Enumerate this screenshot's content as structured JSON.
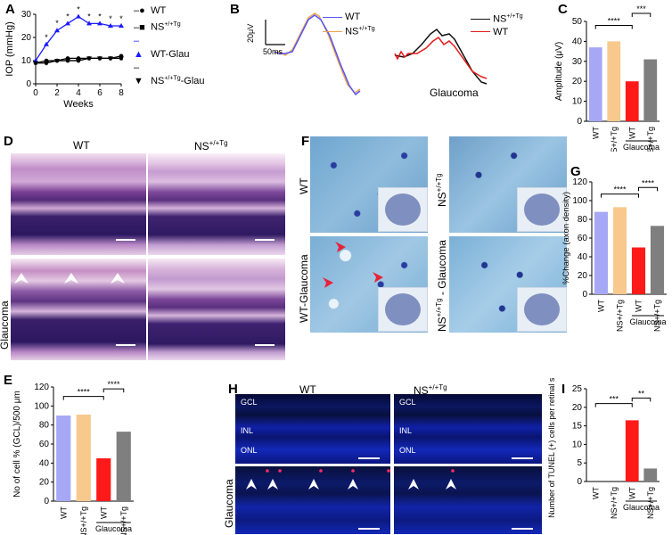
{
  "panels": {
    "A": "A",
    "B": "B",
    "C": "C",
    "D": "D",
    "E": "E",
    "F": "F",
    "G": "G",
    "H": "H",
    "I": "I"
  },
  "colors": {
    "blue": "#1a1aff",
    "orange": "#f0a04a",
    "red": "#ff1a1a",
    "gray": "#888888",
    "lavender": "#a6a8f5",
    "peach": "#f7c98d",
    "darkgray": "#7f7f7f"
  },
  "panelA": {
    "chart_data": {
      "type": "line",
      "xlabel": "Weeks",
      "ylabel": "IOP (mmHg)",
      "x": [
        0,
        1,
        2,
        3,
        4,
        5,
        6,
        7,
        8
      ],
      "xlim": [
        0,
        8
      ],
      "ylim": [
        0,
        30
      ],
      "xticks": [
        "0",
        "2",
        "4",
        "6",
        "8"
      ],
      "yticks": [
        "0",
        "10",
        "20",
        "30"
      ],
      "series": [
        {
          "name": "WT",
          "values": [
            9,
            10,
            10,
            11,
            11,
            11,
            11,
            11,
            12
          ]
        },
        {
          "name": "NS+/+Tg",
          "values": [
            9,
            9,
            10,
            10,
            10,
            11,
            11,
            11,
            11
          ]
        },
        {
          "name": "WT-Glau",
          "values": [
            10,
            17,
            23,
            26,
            29,
            26,
            26,
            25,
            25
          ]
        },
        {
          "name": "NS+/+Tg-Glau",
          "values": [
            9,
            9,
            10,
            10,
            10,
            11,
            11,
            11,
            11
          ]
        }
      ],
      "star": "*"
    },
    "legend": [
      "WT",
      "NS",
      "WT-Glau",
      "NS"
    ],
    "legend_sup": [
      "",
      "+/+Tg",
      "",
      "+/+Tg"
    ],
    "legend_suffix": [
      "",
      "",
      "",
      "-Glau"
    ]
  },
  "panelB": {
    "scale_v": "20μV",
    "scale_t": "50ms",
    "left_legend": [
      "WT",
      "NS"
    ],
    "left_sup": "+/+Tg",
    "right_legend": [
      "NS",
      "WT"
    ],
    "right_sup": "+/+Tg",
    "right_label": "Glaucoma"
  },
  "panelC": {
    "chart_data": {
      "type": "bar",
      "ylabel": "Amplitude (μV)",
      "categories": [
        "WT",
        "NS+/+Tg",
        "WT",
        "NS+/+Tg"
      ],
      "values": [
        37,
        40,
        20,
        31
      ],
      "ylim": [
        0,
        50
      ],
      "yticks": [
        "0",
        "10",
        "20",
        "30",
        "40",
        "50"
      ],
      "group_label": "Glaucoma",
      "sig": [
        "****",
        "***"
      ]
    }
  },
  "panelD": {
    "col1": "WT",
    "col2": "NS",
    "col2_sup": "+/+Tg",
    "row2": "Glaucoma"
  },
  "panelE": {
    "chart_data": {
      "type": "bar",
      "ylabel": "No of cell % (GCL)/500 μm",
      "categories": [
        "WT",
        "NS+/+Tg",
        "WT",
        "NS+/+Tg"
      ],
      "values": [
        90,
        91,
        45,
        73
      ],
      "ylim": [
        0,
        120
      ],
      "yticks": [
        "0",
        "20",
        "40",
        "60",
        "80",
        "100",
        "120"
      ],
      "group_label": "Glaucoma",
      "sig": [
        "****",
        "****"
      ]
    }
  },
  "panelF": {
    "row1": "WT",
    "row2": "WT-Glaucoma",
    "col2_row1": "NS",
    "col2_row1_sup": "+/+Tg",
    "col2_row2": "NS",
    "col2_row2_sup": "+/+Tg",
    "col2_row2_suffix": "- Glaucoma"
  },
  "panelG": {
    "chart_data": {
      "type": "bar",
      "ylabel": "%Change (axon density)",
      "categories": [
        "WT",
        "NS+/+Tg",
        "WT",
        "NS+/+Tg"
      ],
      "values": [
        88,
        93,
        50,
        73
      ],
      "ylim": [
        0,
        120
      ],
      "yticks": [
        "0",
        "20",
        "40",
        "60",
        "80",
        "100",
        "120"
      ],
      "group_label": "Glaucoma",
      "sig": [
        "****",
        "****"
      ]
    }
  },
  "panelH": {
    "col1": "WT",
    "col2": "NS",
    "col2_sup": "+/+Tg",
    "layers": [
      "GCL",
      "INL",
      "ONL"
    ],
    "row2": "Glaucoma"
  },
  "panelI": {
    "chart_data": {
      "type": "bar",
      "ylabel": "Number of TUNEL (+) cells per retinal sections",
      "categories": [
        "WT",
        "NS+/+Tg",
        "WT",
        "NS+/+Tg"
      ],
      "values": [
        0,
        0,
        16.5,
        3.5
      ],
      "ylim": [
        0,
        25
      ],
      "yticks": [
        "0",
        "5",
        "10",
        "15",
        "20",
        "25"
      ],
      "group_label": "Glaucoma",
      "sig": [
        "***",
        "**"
      ]
    }
  }
}
